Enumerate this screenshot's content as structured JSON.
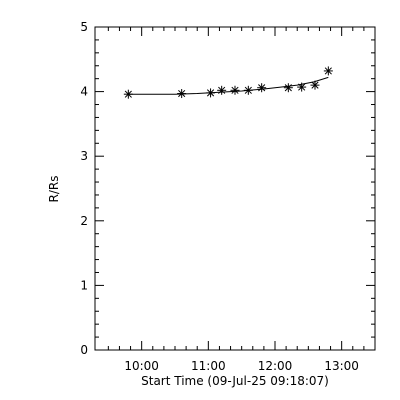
{
  "chart_data": {
    "type": "scatter",
    "xlabel": "Start Time (09-Jul-25 09:18:07)",
    "ylabel": "R/Rs",
    "xlim": [
      "09:18",
      "13:30"
    ],
    "ylim": [
      0,
      5
    ],
    "x_major_ticks": [
      "10:00",
      "11:00",
      "12:00",
      "13:00"
    ],
    "y_major_ticks": [
      0,
      1,
      2,
      3,
      4,
      5
    ],
    "y_tick_labels": [
      "0",
      "1",
      "2",
      "3",
      "4",
      "5"
    ],
    "grid": false,
    "legend": "none",
    "marker": "asterisk",
    "series": [
      {
        "style": "points",
        "x": [
          "09:48",
          "10:36",
          "11:02",
          "11:12",
          "11:24",
          "11:36",
          "11:48",
          "12:12",
          "12:24",
          "12:36",
          "12:48"
        ],
        "y": [
          3.96,
          3.97,
          3.98,
          4.02,
          4.02,
          4.02,
          4.06,
          4.06,
          4.07,
          4.1,
          4.32
        ]
      },
      {
        "style": "line",
        "x": [
          "09:48",
          "10:10",
          "10:30",
          "10:50",
          "11:10",
          "11:30",
          "11:50",
          "12:05",
          "12:20",
          "12:35",
          "12:48"
        ],
        "y": [
          3.96,
          3.96,
          3.96,
          3.97,
          3.99,
          4.01,
          4.04,
          4.07,
          4.1,
          4.15,
          4.22
        ]
      }
    ]
  }
}
